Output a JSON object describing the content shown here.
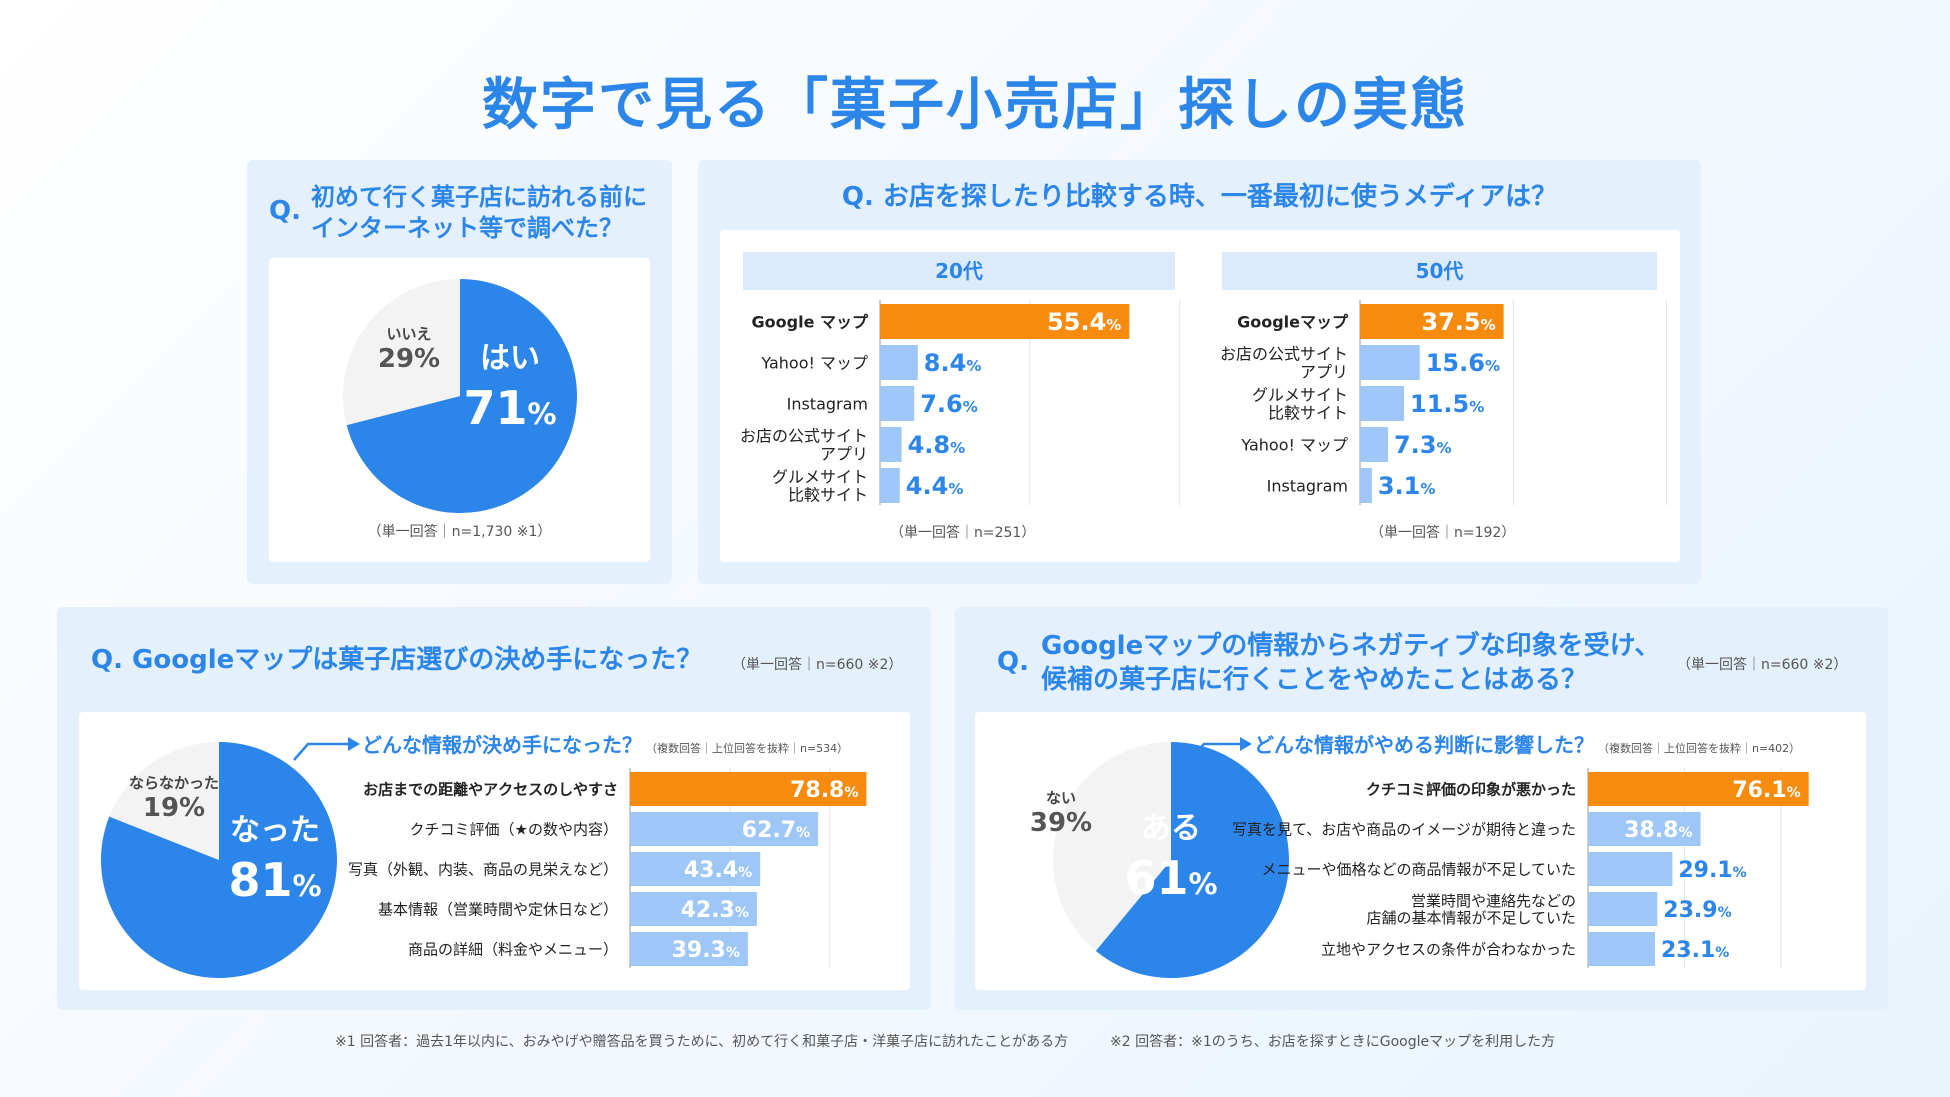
{
  "title": "数字で見る「菓子小売店」探しの実態",
  "q_mark": "Q.",
  "chart_data": [
    {
      "id": "pie_research",
      "type": "pie",
      "question": [
        "初めて行く菓子店に訪れる前に",
        "インターネット等で調べた？"
      ],
      "slices": [
        {
          "label": "はい",
          "value": 71,
          "display": "71",
          "color": "#2c86ea"
        },
        {
          "label": "いいえ",
          "value": 29,
          "display": "29%",
          "color": "#f3f3f3"
        }
      ],
      "note": "（単一回答｜n=1,730 ※1）"
    },
    {
      "id": "bar_media",
      "type": "bar",
      "question": "お店を探したり比較する時、一番最初に使うメディアは？",
      "groups": [
        {
          "name": "20代",
          "note": "（単一回答｜n=251）",
          "categories": [
            [
              "Google マップ"
            ],
            [
              "Yahoo! マップ"
            ],
            [
              "Instagram"
            ],
            [
              "お店の公式サイト",
              "アプリ"
            ],
            [
              "グルメサイト",
              "比較サイト"
            ]
          ],
          "values": [
            55.4,
            8.4,
            7.6,
            4.8,
            4.4
          ],
          "labels": [
            "55.4",
            "8.4",
            "7.6",
            "4.8",
            "4.4"
          ],
          "ylim": [
            0,
            100
          ]
        },
        {
          "name": "50代",
          "note": "（単一回答｜n=192）",
          "categories": [
            [
              "Googleマップ"
            ],
            [
              "お店の公式サイト",
              "アプリ"
            ],
            [
              "グルメサイト",
              "比較サイト"
            ],
            [
              "Yahoo! マップ"
            ],
            [
              "Instagram"
            ]
          ],
          "values": [
            37.5,
            15.6,
            11.5,
            7.3,
            3.1
          ],
          "labels": [
            "37.5",
            "15.6",
            "11.5",
            "7.3",
            "3.1"
          ],
          "ylim": [
            0,
            100
          ]
        }
      ]
    },
    {
      "id": "pie_decisive",
      "type": "pie",
      "question": "Googleマップは菓子店選びの決め手になった？",
      "note": "（単一回答｜n=660 ※2）",
      "slices": [
        {
          "label": "なった",
          "value": 81,
          "display": "81",
          "color": "#2c86ea"
        },
        {
          "label": "ならなかった",
          "value": 19,
          "display": "19%",
          "color": "#f3f3f3"
        }
      ]
    },
    {
      "id": "bar_decisive",
      "type": "bar",
      "subtitle": "どんな情報が決め手になった？",
      "subnote": "（複数回答｜上位回答を抜粋｜n=534）",
      "categories": [
        [
          "お店までの距離やアクセスのしやすさ"
        ],
        [
          "クチコミ評価（★の数や内容）"
        ],
        [
          "写真（外観、内装、商品の見栄えなど）"
        ],
        [
          "基本情報（営業時間や定休日など）"
        ],
        [
          "商品の詳細（料金やメニュー）"
        ]
      ],
      "values": [
        78.8,
        62.7,
        43.4,
        42.3,
        39.3
      ],
      "labels": [
        "78.8",
        "62.7",
        "43.4",
        "42.3",
        "39.3"
      ],
      "ylim": [
        0,
        100
      ]
    },
    {
      "id": "pie_negative",
      "type": "pie",
      "question": [
        "Googleマップの情報からネガティブな印象を受け、",
        "候補の菓子店に行くことをやめたことはある？"
      ],
      "note": "（単一回答｜n=660 ※2）",
      "slices": [
        {
          "label": "ある",
          "value": 61,
          "display": "61",
          "color": "#2c86ea"
        },
        {
          "label": "ない",
          "value": 39,
          "display": "39%",
          "color": "#f3f3f3"
        }
      ]
    },
    {
      "id": "bar_negative",
      "type": "bar",
      "subtitle": "どんな情報がやめる判断に影響した？",
      "subnote": "（複数回答｜上位回答を抜粋｜n=402）",
      "categories": [
        [
          "クチコミ評価の印象が悪かった"
        ],
        [
          "写真を見て、お店や商品のイメージが期待と違った"
        ],
        [
          "メニューや価格などの商品情報が不足していた"
        ],
        [
          "営業時間や連絡先などの",
          "店舗の基本情報が不足していた"
        ],
        [
          "立地やアクセスの条件が合わなかった"
        ]
      ],
      "values": [
        76.1,
        38.8,
        29.1,
        23.9,
        23.1
      ],
      "labels": [
        "76.1",
        "38.8",
        "29.1",
        "23.9",
        "23.1"
      ],
      "ylim": [
        0,
        100
      ]
    }
  ],
  "footnotes": {
    "f1": "※1 回答者：過去1年以内に、おみやげや贈答品を買うために、初めて行く和菓子店・洋菓子店に訪れたことがある方",
    "f2": "※2 回答者：※1のうち、お店を探すときにGoogleマップを利用した方"
  },
  "colors": {
    "primary": "#2c86ea",
    "highlight": "#f68b0f",
    "bar": "#9ec7f7",
    "grey": "#f3f3f3",
    "panel": "#e4f0fc"
  }
}
